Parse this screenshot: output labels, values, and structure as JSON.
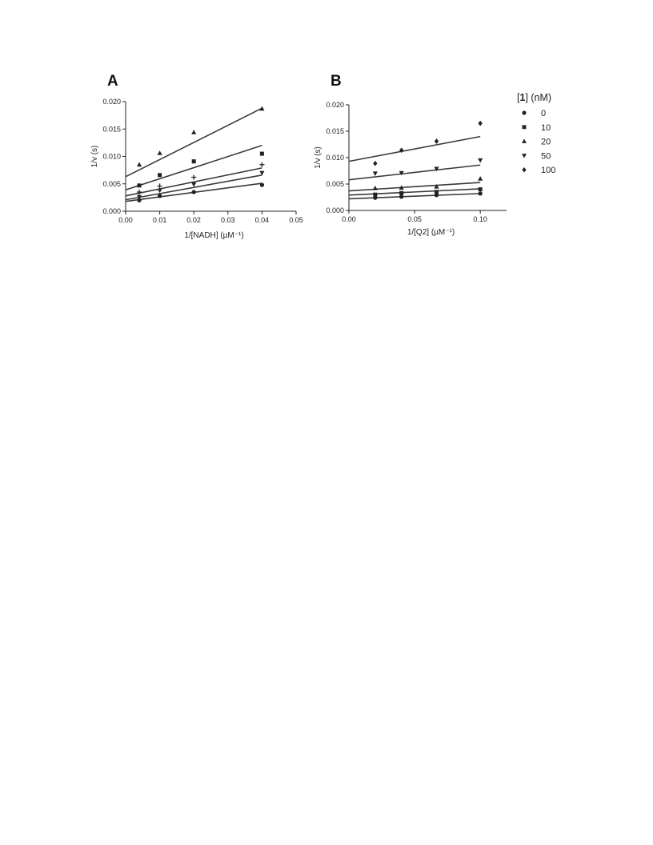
{
  "legend": {
    "title_prefix": "[",
    "title_compound": "1",
    "title_suffix": "]  (nM)",
    "entries": [
      {
        "label": "0",
        "marker": "circle"
      },
      {
        "label": "10",
        "marker": "square"
      },
      {
        "label": "20",
        "marker": "triangle-up"
      },
      {
        "label": "50",
        "marker": "triangle-down"
      },
      {
        "label": "100",
        "marker": "diamond"
      }
    ]
  },
  "chart_data": [
    {
      "type": "scatter",
      "panel_label": "A",
      "title": "",
      "xlabel": "1/[NADH] (µM⁻¹)",
      "ylabel": "1/v (s)",
      "xlim": [
        0,
        0.05
      ],
      "ylim": [
        0,
        0.02
      ],
      "xticks": [
        "0.00",
        "0.01",
        "0.02",
        "0.03",
        "0.04",
        "0.05"
      ],
      "yticks": [
        "0.000",
        "0.005",
        "0.010",
        "0.015",
        "0.020"
      ],
      "grid": false,
      "color": "#222222",
      "series": [
        {
          "name": "0",
          "marker": "circle",
          "x": [
            0.004,
            0.01,
            0.02,
            0.04
          ],
          "y": [
            0.002,
            0.0028,
            0.0035,
            0.0048
          ],
          "fit": [
            0.0018,
            0.0051
          ]
        },
        {
          "name": "10",
          "marker": "square",
          "x": [
            0.004,
            0.01,
            0.02,
            0.04
          ],
          "y": [
            0.0047,
            0.0066,
            0.0091,
            0.0105
          ],
          "fit": [
            0.0039,
            0.012
          ]
        },
        {
          "name": "20",
          "marker": "triangle-up",
          "x": [
            0.004,
            0.01,
            0.02,
            0.04
          ],
          "y": [
            0.0085,
            0.0106,
            0.0144,
            0.0187
          ],
          "fit": [
            0.0063,
            0.0188
          ]
        },
        {
          "name": "50",
          "marker": "triangle-down",
          "x": [
            0.004,
            0.01,
            0.02,
            0.04
          ],
          "y": [
            0.0026,
            0.0038,
            0.0049,
            0.007
          ],
          "fit": [
            0.0021,
            0.0066
          ]
        },
        {
          "name": "",
          "marker": "plus",
          "x": [
            0.004,
            0.01,
            0.02,
            0.04
          ],
          "y": [
            0.0035,
            0.0046,
            0.0062,
            0.0085
          ],
          "fit": [
            0.0028,
            0.0079
          ]
        }
      ]
    },
    {
      "type": "scatter",
      "panel_label": "B",
      "title": "",
      "xlabel": "1/[Q2]  (µM⁻¹)",
      "ylabel": "1/v (s)",
      "xlim": [
        0,
        0.12
      ],
      "ylim": [
        0,
        0.02
      ],
      "xticks": [
        "0.00",
        "0.05",
        "0.10"
      ],
      "xtick_values": [
        0,
        0.05,
        0.1
      ],
      "yticks": [
        "0.000",
        "0.005",
        "0.010",
        "0.015",
        "0.020"
      ],
      "grid": false,
      "color": "#222222",
      "series": [
        {
          "name": "0",
          "marker": "circle",
          "x": [
            0.02,
            0.04,
            0.0667,
            0.1
          ],
          "y": [
            0.0024,
            0.0026,
            0.0029,
            0.0032
          ],
          "fit": [
            0.0022,
            0.0032
          ]
        },
        {
          "name": "10",
          "marker": "square",
          "x": [
            0.02,
            0.04,
            0.0667,
            0.1
          ],
          "y": [
            0.003,
            0.0033,
            0.0035,
            0.004
          ],
          "fit": [
            0.0029,
            0.0041
          ]
        },
        {
          "name": "20",
          "marker": "triangle-up",
          "x": [
            0.02,
            0.04,
            0.0667,
            0.1
          ],
          "y": [
            0.0042,
            0.0043,
            0.0045,
            0.006
          ],
          "fit": [
            0.0037,
            0.0053
          ]
        },
        {
          "name": "50",
          "marker": "triangle-down",
          "x": [
            0.02,
            0.04,
            0.0667,
            0.1
          ],
          "y": [
            0.007,
            0.0071,
            0.0079,
            0.0095
          ],
          "fit": [
            0.0058,
            0.0086
          ]
        },
        {
          "name": "100",
          "marker": "diamond",
          "x": [
            0.02,
            0.04,
            0.0667,
            0.1
          ],
          "y": [
            0.0089,
            0.0114,
            0.0131,
            0.0165
          ],
          "fit": [
            0.0093,
            0.014
          ]
        }
      ]
    }
  ]
}
